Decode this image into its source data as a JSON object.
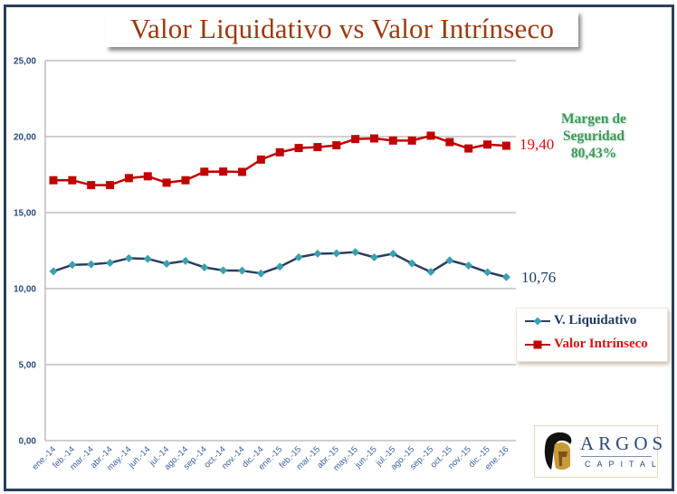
{
  "title": "Valor Liquidativo vs Valor Intrínseco",
  "annotations": {
    "end_value_intrinseco": "19,40",
    "end_value_liquidativo": "10,76",
    "margin_line1": "Margen de",
    "margin_line2": "Seguridad",
    "margin_value": "80,43%"
  },
  "legend": {
    "items": [
      {
        "label": "V. Liquidativo",
        "color": "#1f3a60",
        "marker_color": "#3aa0b0",
        "marker": "diamond"
      },
      {
        "label": "Valor Intrínseco",
        "color": "#e01010",
        "marker_color": "#c00000",
        "marker": "square"
      }
    ]
  },
  "logo": {
    "name": "ARGOS",
    "subtitle": "CAPITAL",
    "icon": "spartan-helmet-icon"
  },
  "colors": {
    "frame": "#2a3f5c",
    "title": "#9a3a10",
    "grid": "#b4b4b4",
    "intrinseco_line": "#c00000",
    "liquidativo_line": "#2a3f5c",
    "liquidativo_marker": "#3aa0b0",
    "margin_text": "#3a9a5a"
  },
  "chart_data": {
    "type": "line",
    "title": "Valor Liquidativo vs Valor Intrínseco",
    "xlabel": "",
    "ylabel": "",
    "ylim": [
      0,
      25
    ],
    "yticks": [
      "0,00",
      "5,00",
      "10,00",
      "15,00",
      "20,00",
      "25,00"
    ],
    "ytick_values": [
      0,
      5,
      10,
      15,
      20,
      25
    ],
    "grid": true,
    "legend_position": "right",
    "categories": [
      "ene.-14",
      "feb.-14",
      "mar.-14",
      "abr.-14",
      "may.-14",
      "jun.-14",
      "jul.-14",
      "ago.-14",
      "sep.-14",
      "oct.-14",
      "nov.-14",
      "dic.-14",
      "ene.-15",
      "feb.-15",
      "mar.-15",
      "abr.-15",
      "may.-15",
      "jun.-15",
      "jul.-15",
      "ago.-15",
      "sep.-15",
      "oct.-15",
      "nov.-15",
      "dic.-15",
      "ene.-16"
    ],
    "series": [
      {
        "name": "V. Liquidativo",
        "values": [
          11.14,
          11.56,
          11.6,
          11.7,
          12.0,
          11.96,
          11.64,
          11.82,
          11.4,
          11.2,
          11.18,
          11.0,
          11.44,
          12.06,
          12.3,
          12.32,
          12.4,
          12.06,
          12.3,
          11.66,
          11.1,
          11.86,
          11.52,
          11.08,
          10.76
        ]
      },
      {
        "name": "Valor Intrínseco",
        "values": [
          17.13,
          17.13,
          16.81,
          16.81,
          17.27,
          17.39,
          16.97,
          17.13,
          17.69,
          17.7,
          17.68,
          18.49,
          18.97,
          19.25,
          19.31,
          19.43,
          19.84,
          19.88,
          19.74,
          19.74,
          20.06,
          19.64,
          19.22,
          19.48,
          19.4
        ]
      }
    ]
  }
}
